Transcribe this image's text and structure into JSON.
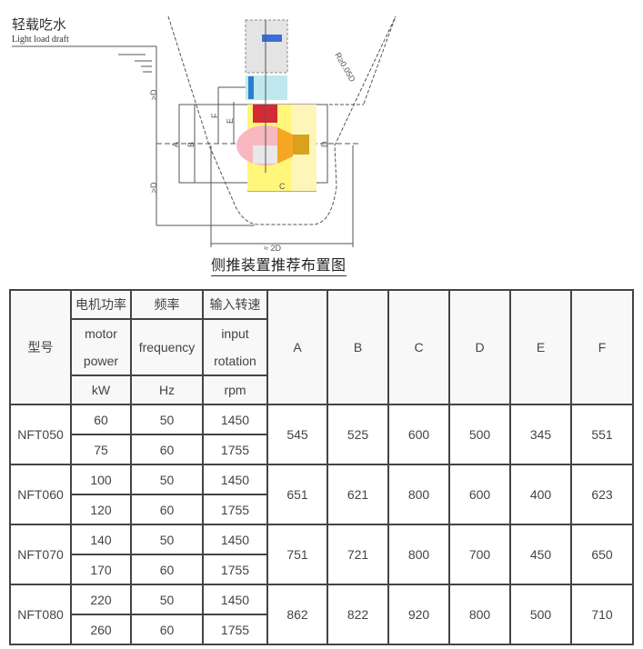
{
  "diagram": {
    "draft_label_cn": "轻载吃水",
    "draft_label_en": "Light load draft",
    "dim_min_d_top": "≥D",
    "dim_min_d_bottom": "≥D",
    "dim_radius": "R≥0.05D",
    "dim_width": "≈ 2D",
    "dim_labels": {
      "A": "A",
      "B": "B",
      "C": "C",
      "D": "D",
      "E": "E",
      "F": "F"
    },
    "caption": "侧推装置推荐布置图"
  },
  "table": {
    "header": {
      "model": "型号",
      "power_cn": "电机功率",
      "power_en_1": "motor",
      "power_en_2": "power",
      "power_unit": "kW",
      "freq_cn": "频率",
      "freq_en": "frequency",
      "freq_unit": "Hz",
      "speed_cn": "输入转速",
      "speed_en_1": "input",
      "speed_en_2": "rotation",
      "speed_unit": "rpm",
      "dims": [
        "A",
        "B",
        "C",
        "D",
        "E",
        "F"
      ]
    },
    "rows": [
      {
        "model": "NFT050",
        "sub": [
          {
            "power": "60",
            "freq": "50",
            "rpm": "1450"
          },
          {
            "power": "75",
            "freq": "60",
            "rpm": "1755"
          }
        ],
        "dims": [
          "545",
          "525",
          "600",
          "500",
          "345",
          "551"
        ]
      },
      {
        "model": "NFT060",
        "sub": [
          {
            "power": "100",
            "freq": "50",
            "rpm": "1450"
          },
          {
            "power": "120",
            "freq": "60",
            "rpm": "1755"
          }
        ],
        "dims": [
          "651",
          "621",
          "800",
          "600",
          "400",
          "623"
        ]
      },
      {
        "model": "NFT070",
        "sub": [
          {
            "power": "140",
            "freq": "50",
            "rpm": "1450"
          },
          {
            "power": "170",
            "freq": "60",
            "rpm": "1755"
          }
        ],
        "dims": [
          "751",
          "721",
          "800",
          "700",
          "450",
          "650"
        ]
      },
      {
        "model": "NFT080",
        "sub": [
          {
            "power": "220",
            "freq": "50",
            "rpm": "1450"
          },
          {
            "power": "260",
            "freq": "60",
            "rpm": "1755"
          }
        ],
        "dims": [
          "862",
          "822",
          "920",
          "800",
          "500",
          "710"
        ]
      }
    ]
  }
}
